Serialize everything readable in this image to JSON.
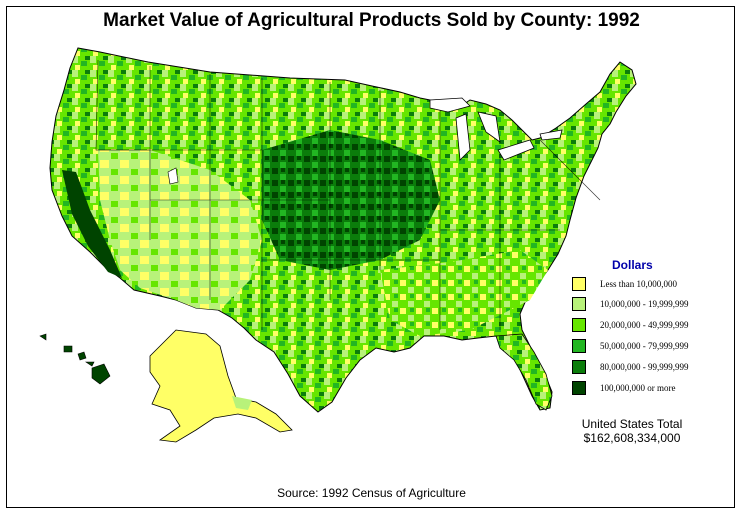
{
  "title": "Market Value of Agricultural Products Sold by County:  1992",
  "legend": {
    "title": "Dollars",
    "items": [
      {
        "label": "Less than 10,000,000",
        "color": "#ffff66"
      },
      {
        "label": "10,000,000 - 19,999,999",
        "color": "#b8f27a"
      },
      {
        "label": "20,000,000 - 49,999,999",
        "color": "#66e600"
      },
      {
        "label": "50,000,000 - 79,999,999",
        "color": "#22b622"
      },
      {
        "label": "80,000,000 - 99,999,999",
        "color": "#0b7d0b"
      },
      {
        "label": "100,000,000 or more",
        "color": "#004400"
      }
    ]
  },
  "total": {
    "line1": "United States Total",
    "line2": "$162,608,334,000"
  },
  "source": "Source:  1992 Census of Agriculture"
}
